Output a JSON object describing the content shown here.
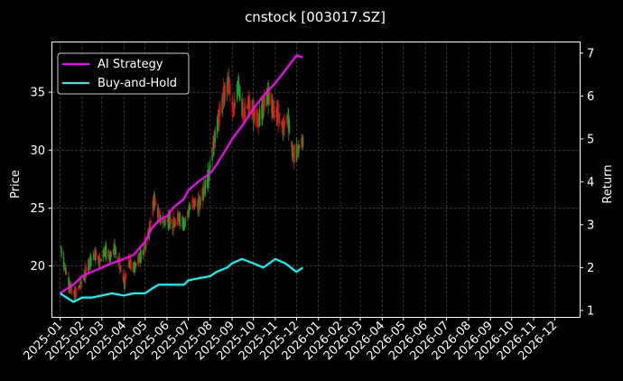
{
  "chart_data": {
    "type": "line",
    "title": "cnstock [003017.SZ]",
    "xlabel": "",
    "ylabel_left": "Price",
    "ylabel_right": "Return",
    "x_ticks": [
      "2025-01",
      "2025-02",
      "2025-03",
      "2025-04",
      "2025-05",
      "2025-06",
      "2025-07",
      "2025-08",
      "2025-09",
      "2025-10",
      "2025-11",
      "2025-12",
      "2026-01",
      "2026-02",
      "2026-03",
      "2026-04",
      "2026-05",
      "2026-06",
      "2026-07",
      "2026-08",
      "2026-09",
      "2026-10",
      "2026-11",
      "2026-12"
    ],
    "x_range": [
      "2024-12-21",
      "2027-01-05"
    ],
    "ylim_left": [
      15.6,
      39.3
    ],
    "yticks_left": [
      20,
      25,
      30,
      35
    ],
    "ylim_right": [
      0.85,
      7.25
    ],
    "yticks_right": [
      1,
      2,
      3,
      4,
      5,
      6,
      7
    ],
    "grid": true,
    "legend_position": "top-left",
    "candles_price_trace": {
      "x": [
        "2025-01-02",
        "2025-01-08",
        "2025-01-15",
        "2025-01-22",
        "2025-02-05",
        "2025-02-12",
        "2025-02-19",
        "2025-02-26",
        "2025-03-05",
        "2025-03-12",
        "2025-03-19",
        "2025-03-26",
        "2025-04-02",
        "2025-04-08",
        "2025-04-15",
        "2025-04-22",
        "2025-04-29",
        "2025-05-07",
        "2025-05-14",
        "2025-05-21",
        "2025-05-28",
        "2025-06-04",
        "2025-06-11",
        "2025-06-18",
        "2025-06-25",
        "2025-07-02",
        "2025-07-09",
        "2025-07-16",
        "2025-07-23",
        "2025-07-30",
        "2025-08-06",
        "2025-08-13",
        "2025-08-20",
        "2025-08-27",
        "2025-09-03",
        "2025-09-10",
        "2025-09-17",
        "2025-09-24",
        "2025-10-01",
        "2025-10-08",
        "2025-10-15",
        "2025-10-22",
        "2025-10-29",
        "2025-11-05",
        "2025-11-12",
        "2025-11-19",
        "2025-11-26",
        "2025-12-03",
        "2025-12-10"
      ],
      "close": [
        21.5,
        19.8,
        18.2,
        17.5,
        19.2,
        20.4,
        21.0,
        20.3,
        21.4,
        20.8,
        21.5,
        20.2,
        18.5,
        20.3,
        19.8,
        20.6,
        21.3,
        23.0,
        25.8,
        24.2,
        23.8,
        24.0,
        23.5,
        24.2,
        23.6,
        24.8,
        25.5,
        25.2,
        26.5,
        27.8,
        30.5,
        32.8,
        34.5,
        36.0,
        33.2,
        35.8,
        33.0,
        34.0,
        33.2,
        32.5,
        33.8,
        35.0,
        33.5,
        33.0,
        32.0,
        32.8,
        29.5,
        30.0,
        30.8
      ]
    },
    "series": [
      {
        "name": "AI Strategy",
        "color": "#ff00ff",
        "x": [
          "2025-01-01",
          "2025-01-10",
          "2025-01-20",
          "2025-02-01",
          "2025-02-15",
          "2025-03-01",
          "2025-03-15",
          "2025-04-01",
          "2025-04-15",
          "2025-05-01",
          "2025-05-10",
          "2025-05-20",
          "2025-06-01",
          "2025-06-10",
          "2025-06-25",
          "2025-07-01",
          "2025-07-15",
          "2025-08-01",
          "2025-08-10",
          "2025-08-25",
          "2025-09-01",
          "2025-09-15",
          "2025-10-01",
          "2025-10-15",
          "2025-11-01",
          "2025-11-15",
          "2025-12-01",
          "2025-12-10"
        ],
        "values": [
          1.4,
          1.5,
          1.6,
          1.8,
          1.9,
          2.0,
          2.1,
          2.2,
          2.3,
          2.6,
          2.9,
          3.1,
          3.2,
          3.4,
          3.6,
          3.8,
          4.0,
          4.2,
          4.4,
          4.8,
          5.0,
          5.3,
          5.7,
          6.0,
          6.3,
          6.6,
          6.95,
          6.9
        ]
      },
      {
        "name": "Buy-and-Hold",
        "color": "#00ffff",
        "x": [
          "2025-01-01",
          "2025-01-10",
          "2025-01-20",
          "2025-02-01",
          "2025-02-15",
          "2025-03-01",
          "2025-03-15",
          "2025-04-01",
          "2025-04-15",
          "2025-05-01",
          "2025-05-10",
          "2025-05-20",
          "2025-06-01",
          "2025-06-10",
          "2025-06-25",
          "2025-07-01",
          "2025-07-15",
          "2025-08-01",
          "2025-08-10",
          "2025-08-25",
          "2025-09-01",
          "2025-09-15",
          "2025-10-01",
          "2025-10-15",
          "2025-11-01",
          "2025-11-15",
          "2025-12-01",
          "2025-12-10"
        ],
        "values": [
          1.4,
          1.3,
          1.2,
          1.3,
          1.3,
          1.35,
          1.4,
          1.35,
          1.4,
          1.4,
          1.5,
          1.6,
          1.6,
          1.6,
          1.6,
          1.7,
          1.75,
          1.8,
          1.9,
          2.0,
          2.1,
          2.2,
          2.1,
          2.0,
          2.2,
          2.1,
          1.9,
          2.0
        ]
      }
    ]
  }
}
